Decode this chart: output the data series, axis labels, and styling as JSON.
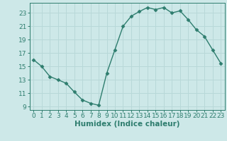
{
  "x": [
    0,
    1,
    2,
    3,
    4,
    5,
    6,
    7,
    8,
    9,
    10,
    11,
    12,
    13,
    14,
    15,
    16,
    17,
    18,
    19,
    20,
    21,
    22,
    23
  ],
  "y": [
    16.0,
    15.0,
    13.5,
    13.0,
    12.5,
    11.2,
    10.0,
    9.5,
    9.2,
    14.0,
    17.5,
    21.0,
    22.5,
    23.2,
    23.8,
    23.5,
    23.8,
    23.0,
    23.3,
    22.0,
    20.5,
    19.5,
    17.5,
    15.5
  ],
  "line_color": "#2e7d6e",
  "marker": "D",
  "markersize": 2.5,
  "bg_color": "#cde8e8",
  "grid_color": "#b8d8d8",
  "xlabel": "Humidex (Indice chaleur)",
  "ylim": [
    8.5,
    24.5
  ],
  "yticks": [
    9,
    11,
    13,
    15,
    17,
    19,
    21,
    23
  ],
  "xlim": [
    -0.5,
    23.5
  ],
  "tick_color": "#2e7d6e",
  "tick_fontsize": 6.5,
  "xlabel_fontsize": 7.5
}
